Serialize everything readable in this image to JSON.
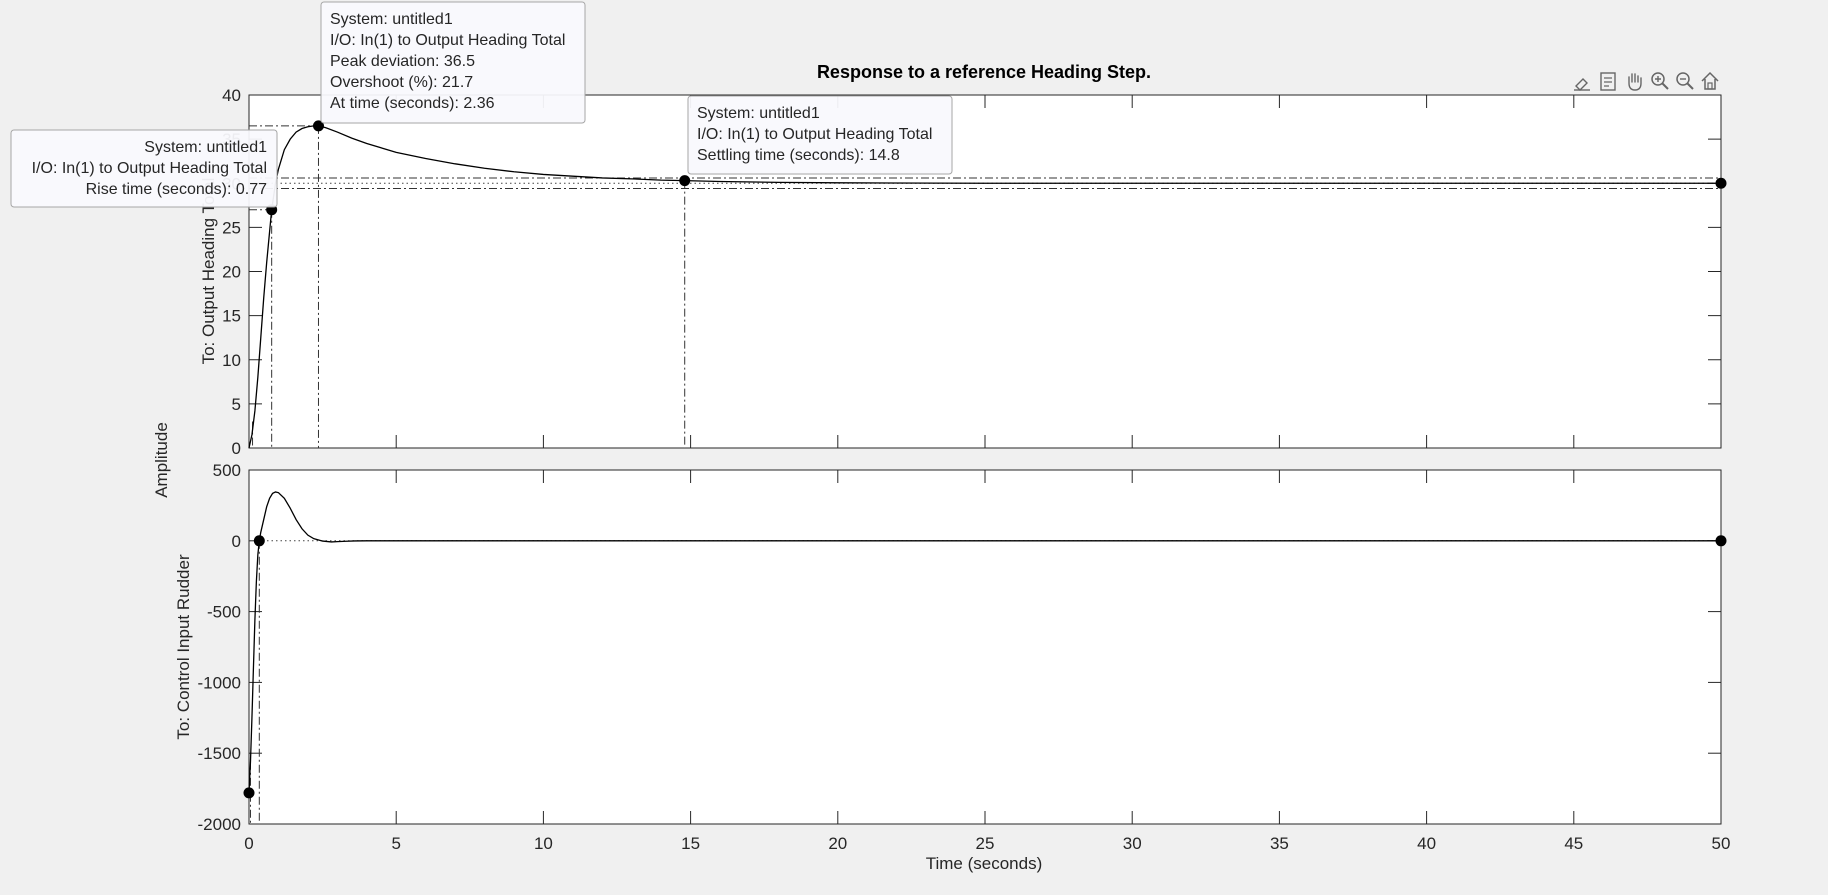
{
  "toolbar": {
    "icons": [
      "brush-icon",
      "export-icon",
      "pan-icon",
      "zoom-in-icon",
      "zoom-out-icon",
      "home-icon"
    ]
  },
  "chart_data": {
    "type": "line",
    "title": "Response to a reference Heading Step.",
    "xlabel": "Time (seconds)",
    "ylabel": "Amplitude",
    "xlim": [
      0,
      50
    ],
    "x_ticks": [
      0,
      5,
      10,
      15,
      20,
      25,
      30,
      35,
      40,
      45,
      50
    ],
    "grid": false,
    "colors": {
      "line": "#000000",
      "marker": "#000000",
      "axes_bg": "#ffffff",
      "figure_bg": "#f0f0f0"
    },
    "subplots": [
      {
        "ylabel": "To: Output Heading Total",
        "ylim": [
          0,
          40
        ],
        "y_ticks": [
          0,
          5,
          10,
          15,
          20,
          25,
          30,
          35,
          40
        ],
        "steady_state": 30,
        "series": [
          {
            "x": [
              0,
              0.1,
              0.2,
              0.3,
              0.4,
              0.5,
              0.6,
              0.77,
              0.9,
              1.0,
              1.2,
              1.4,
              1.6,
              1.8,
              2.0,
              2.2,
              2.36,
              2.6,
              3.0,
              3.5,
              4,
              5,
              6,
              7,
              8,
              9,
              10,
              11,
              12,
              13,
              14,
              14.8,
              16,
              18,
              20,
              25,
              30,
              35,
              40,
              45,
              50
            ],
            "y": [
              0,
              1.5,
              4.2,
              8.0,
              12.5,
              17.0,
              21.0,
              27.0,
              30.0,
              31.6,
              33.8,
              35.0,
              35.8,
              36.2,
              36.4,
              36.5,
              36.5,
              36.3,
              35.8,
              35.1,
              34.5,
              33.5,
              32.8,
              32.2,
              31.7,
              31.3,
              31.0,
              30.8,
              30.6,
              30.5,
              30.35,
              30.3,
              30.2,
              30.1,
              30.05,
              30.0,
              30.0,
              30.0,
              30.0,
              30.0,
              30.0
            ]
          }
        ],
        "markers": [
          {
            "x": 0.77,
            "y": 27.0
          },
          {
            "x": 2.36,
            "y": 36.5
          },
          {
            "x": 14.8,
            "y": 30.3
          },
          {
            "x": 50,
            "y": 30.0
          }
        ]
      },
      {
        "ylabel": "To: Control Input Rudder",
        "ylim": [
          -2000,
          500
        ],
        "y_ticks": [
          -2000,
          -1500,
          -1000,
          -500,
          0,
          500
        ],
        "steady_state": 0,
        "series": [
          {
            "x": [
              0,
              0.05,
              0.1,
              0.15,
              0.2,
              0.25,
              0.3,
              0.35,
              0.4,
              0.5,
              0.6,
              0.7,
              0.8,
              0.9,
              1.0,
              1.2,
              1.4,
              1.6,
              1.8,
              2.0,
              2.2,
              2.5,
              2.8,
              3.0,
              3.3,
              3.6,
              4.0,
              4.5,
              5,
              6,
              8,
              10,
              15,
              20,
              30,
              40,
              50
            ],
            "y": [
              -1780,
              -1560,
              -1250,
              -900,
              -560,
              -290,
              -100,
              0,
              60,
              150,
              240,
              300,
              335,
              345,
              340,
              300,
              230,
              150,
              85,
              40,
              15,
              -2,
              -8,
              -6,
              -3,
              -1,
              0,
              0,
              0,
              0,
              0,
              0,
              0,
              0,
              0,
              0,
              0
            ]
          }
        ],
        "markers": [
          {
            "x": 0,
            "y": -1780
          },
          {
            "x": 0.35,
            "y": 0
          },
          {
            "x": 50,
            "y": 0
          }
        ]
      }
    ],
    "annotations": [
      {
        "lines": [
          "System: untitled1",
          "I/O: In(1) to Output Heading Total",
          "Peak deviation: 36.5",
          "Overshoot (%): 21.7",
          "At time (seconds): 2.36"
        ]
      },
      {
        "lines": [
          "System: untitled1",
          "I/O: In(1) to Output Heading Total",
          "Rise time (seconds): 0.77"
        ]
      },
      {
        "lines": [
          "System: untitled1",
          "I/O: In(1) to Output Heading Total",
          "Settling time (seconds): 14.8"
        ]
      }
    ]
  }
}
